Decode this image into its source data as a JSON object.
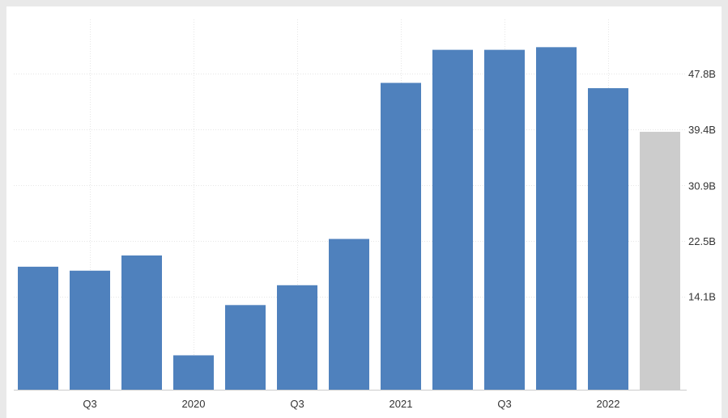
{
  "chart_data": {
    "type": "bar",
    "categories": [
      "",
      "Q3",
      "",
      "2020",
      "",
      "Q3",
      "",
      "2021",
      "",
      "Q3",
      "",
      "2022",
      ""
    ],
    "values": [
      18.6,
      18.0,
      20.3,
      5.2,
      12.8,
      15.8,
      22.8,
      46.4,
      51.4,
      51.4,
      51.8,
      45.6,
      39.0
    ],
    "forecast_from_index": 12,
    "x_tick_labels": [
      {
        "index": 1,
        "label": "Q3"
      },
      {
        "index": 3,
        "label": "2020"
      },
      {
        "index": 5,
        "label": "Q3"
      },
      {
        "index": 7,
        "label": "2021"
      },
      {
        "index": 9,
        "label": "Q3"
      },
      {
        "index": 11,
        "label": "2022"
      }
    ],
    "y_ticks": [
      14.1,
      22.5,
      30.9,
      39.4,
      47.8
    ],
    "y_tick_labels": [
      "14.1B",
      "22.5B",
      "30.9B",
      "39.4B",
      "47.8B"
    ],
    "ylim": [
      0,
      56
    ],
    "y_axis_side": "right",
    "grid": true,
    "title": "",
    "xlabel": "",
    "ylabel": "",
    "colors": {
      "bar": "#4f81bd",
      "forecast_bar": "#cccccc",
      "grid": "#e6e6e6",
      "axis": "#cccccc",
      "text": "#333333"
    }
  }
}
